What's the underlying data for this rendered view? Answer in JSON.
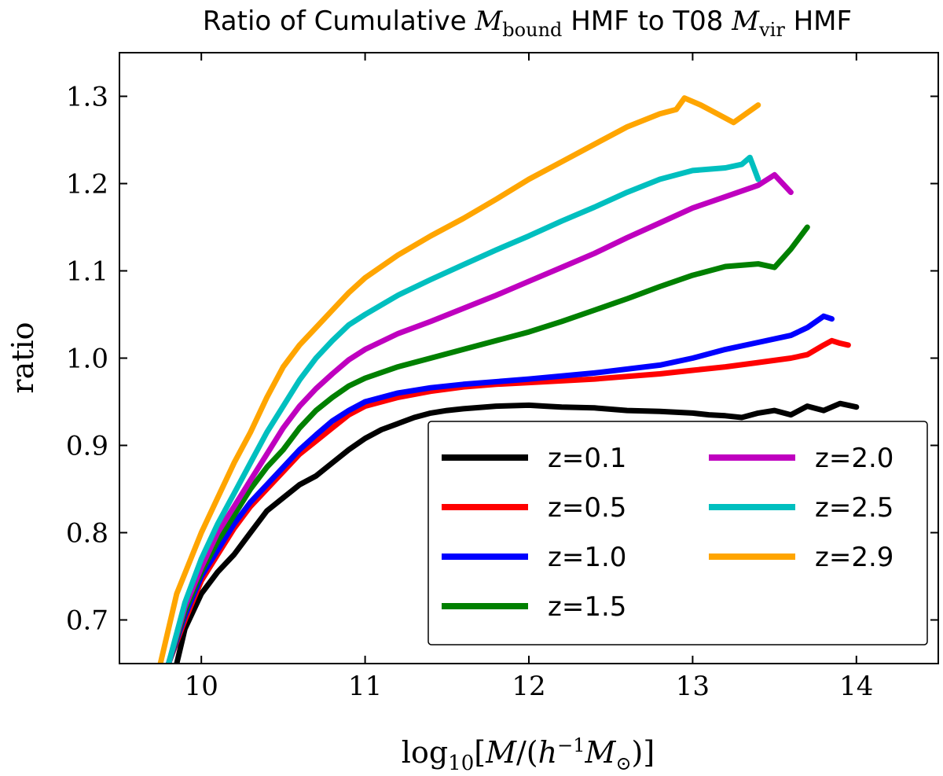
{
  "chart_data": {
    "type": "line",
    "title": "Ratio of Cumulative M_bound HMF to T08 M_vir HMF",
    "title_parts": {
      "prefix": "Ratio of Cumulative ",
      "m1": "M",
      "m1_sub": "bound",
      "middle": " HMF to T08 ",
      "m2": "M",
      "m2_sub": "vir",
      "suffix": " HMF"
    },
    "xlabel": "log10[M/(h^-1 M⊙)]",
    "xlabel_parts": {
      "log": "log",
      "log_sub": "10",
      "open": "[",
      "m": "M",
      "slash": "/(",
      "h": "h",
      "h_sup": "−1",
      "msun": "M",
      "msun_sub": "⊙",
      "close": ")]"
    },
    "ylabel": "ratio",
    "xlim": [
      9.5,
      14.5
    ],
    "ylim": [
      0.65,
      1.35
    ],
    "xticks": [
      10,
      11,
      12,
      13,
      14
    ],
    "yticks": [
      0.7,
      0.8,
      0.9,
      1.0,
      1.1,
      1.2,
      1.3
    ],
    "xtick_labels": [
      "10",
      "11",
      "12",
      "13",
      "14"
    ],
    "ytick_labels": [
      "0.7",
      "0.8",
      "0.9",
      "1.0",
      "1.1",
      "1.2",
      "1.3"
    ],
    "grid": false,
    "legend_position": "lower-right",
    "legend_columns": 2,
    "series": [
      {
        "name": "z=0.1",
        "color": "#000000",
        "x": [
          9.85,
          9.9,
          10.0,
          10.1,
          10.2,
          10.3,
          10.4,
          10.5,
          10.6,
          10.7,
          10.8,
          10.9,
          11.0,
          11.1,
          11.2,
          11.3,
          11.4,
          11.5,
          11.6,
          11.8,
          12.0,
          12.1,
          12.2,
          12.4,
          12.6,
          12.8,
          13.0,
          13.1,
          13.2,
          13.3,
          13.4,
          13.5,
          13.6,
          13.7,
          13.8,
          13.9,
          14.0
        ],
        "y": [
          0.65,
          0.69,
          0.73,
          0.755,
          0.775,
          0.8,
          0.825,
          0.84,
          0.855,
          0.865,
          0.88,
          0.895,
          0.908,
          0.918,
          0.925,
          0.932,
          0.937,
          0.94,
          0.942,
          0.945,
          0.946,
          0.945,
          0.944,
          0.943,
          0.94,
          0.939,
          0.937,
          0.935,
          0.934,
          0.932,
          0.937,
          0.94,
          0.935,
          0.945,
          0.94,
          0.948,
          0.944
        ]
      },
      {
        "name": "z=0.5",
        "color": "#ff0000",
        "x": [
          9.8,
          9.9,
          10.0,
          10.1,
          10.2,
          10.3,
          10.4,
          10.5,
          10.6,
          10.7,
          10.8,
          10.9,
          11.0,
          11.2,
          11.4,
          11.6,
          11.8,
          12.0,
          12.4,
          12.8,
          13.0,
          13.2,
          13.4,
          13.6,
          13.7,
          13.8,
          13.85,
          13.9,
          13.95
        ],
        "y": [
          0.65,
          0.7,
          0.745,
          0.775,
          0.805,
          0.83,
          0.85,
          0.87,
          0.89,
          0.905,
          0.92,
          0.935,
          0.945,
          0.955,
          0.962,
          0.967,
          0.97,
          0.972,
          0.976,
          0.982,
          0.986,
          0.99,
          0.995,
          1.0,
          1.004,
          1.015,
          1.02,
          1.017,
          1.015
        ]
      },
      {
        "name": "z=1.0",
        "color": "#0000ff",
        "x": [
          9.8,
          9.9,
          10.0,
          10.1,
          10.2,
          10.3,
          10.4,
          10.5,
          10.6,
          10.7,
          10.8,
          10.9,
          11.0,
          11.2,
          11.4,
          11.6,
          11.8,
          12.0,
          12.4,
          12.8,
          13.0,
          13.2,
          13.4,
          13.6,
          13.7,
          13.8,
          13.85
        ],
        "y": [
          0.65,
          0.705,
          0.75,
          0.78,
          0.81,
          0.835,
          0.855,
          0.875,
          0.895,
          0.912,
          0.928,
          0.94,
          0.95,
          0.96,
          0.966,
          0.97,
          0.973,
          0.976,
          0.983,
          0.992,
          1.0,
          1.01,
          1.018,
          1.026,
          1.035,
          1.048,
          1.045
        ]
      },
      {
        "name": "z=1.5",
        "color": "#008000",
        "x": [
          9.8,
          9.9,
          10.0,
          10.1,
          10.2,
          10.3,
          10.4,
          10.5,
          10.6,
          10.7,
          10.8,
          10.9,
          11.0,
          11.2,
          11.4,
          11.6,
          11.8,
          12.0,
          12.2,
          12.4,
          12.6,
          12.8,
          13.0,
          13.2,
          13.4,
          13.5,
          13.6,
          13.7
        ],
        "y": [
          0.65,
          0.71,
          0.755,
          0.79,
          0.82,
          0.85,
          0.875,
          0.895,
          0.92,
          0.94,
          0.955,
          0.968,
          0.977,
          0.99,
          1.0,
          1.01,
          1.02,
          1.03,
          1.042,
          1.055,
          1.068,
          1.082,
          1.095,
          1.105,
          1.108,
          1.104,
          1.125,
          1.15
        ]
      },
      {
        "name": "z=2.0",
        "color": "#bf00bf",
        "x": [
          9.8,
          9.9,
          10.0,
          10.1,
          10.2,
          10.3,
          10.4,
          10.5,
          10.6,
          10.7,
          10.8,
          10.9,
          11.0,
          11.2,
          11.4,
          11.6,
          11.8,
          12.0,
          12.2,
          12.4,
          12.6,
          12.8,
          13.0,
          13.2,
          13.4,
          13.5,
          13.55,
          13.6
        ],
        "y": [
          0.65,
          0.715,
          0.76,
          0.8,
          0.83,
          0.86,
          0.89,
          0.92,
          0.945,
          0.965,
          0.982,
          0.998,
          1.01,
          1.028,
          1.042,
          1.057,
          1.072,
          1.088,
          1.104,
          1.12,
          1.138,
          1.155,
          1.172,
          1.185,
          1.198,
          1.21,
          1.2,
          1.19
        ]
      },
      {
        "name": "z=2.5",
        "color": "#00bfbf",
        "x": [
          9.8,
          9.9,
          10.0,
          10.1,
          10.2,
          10.3,
          10.4,
          10.5,
          10.6,
          10.7,
          10.8,
          10.9,
          11.0,
          11.2,
          11.4,
          11.6,
          11.8,
          12.0,
          12.2,
          12.4,
          12.6,
          12.8,
          13.0,
          13.2,
          13.3,
          13.35,
          13.4
        ],
        "y": [
          0.65,
          0.72,
          0.77,
          0.81,
          0.845,
          0.88,
          0.915,
          0.945,
          0.975,
          1.0,
          1.02,
          1.038,
          1.05,
          1.072,
          1.09,
          1.107,
          1.124,
          1.14,
          1.157,
          1.173,
          1.19,
          1.205,
          1.215,
          1.218,
          1.222,
          1.23,
          1.205
        ]
      },
      {
        "name": "z=2.9",
        "color": "#ffa500",
        "x": [
          9.75,
          9.85,
          10.0,
          10.1,
          10.2,
          10.3,
          10.4,
          10.5,
          10.6,
          10.7,
          10.8,
          10.9,
          11.0,
          11.2,
          11.4,
          11.6,
          11.8,
          12.0,
          12.2,
          12.4,
          12.6,
          12.8,
          12.9,
          12.95,
          13.05,
          13.15,
          13.25,
          13.4
        ],
        "y": [
          0.65,
          0.73,
          0.8,
          0.84,
          0.88,
          0.915,
          0.955,
          0.99,
          1.015,
          1.035,
          1.055,
          1.075,
          1.092,
          1.118,
          1.14,
          1.16,
          1.182,
          1.205,
          1.225,
          1.245,
          1.265,
          1.28,
          1.285,
          1.298,
          1.29,
          1.28,
          1.27,
          1.29
        ]
      }
    ]
  }
}
